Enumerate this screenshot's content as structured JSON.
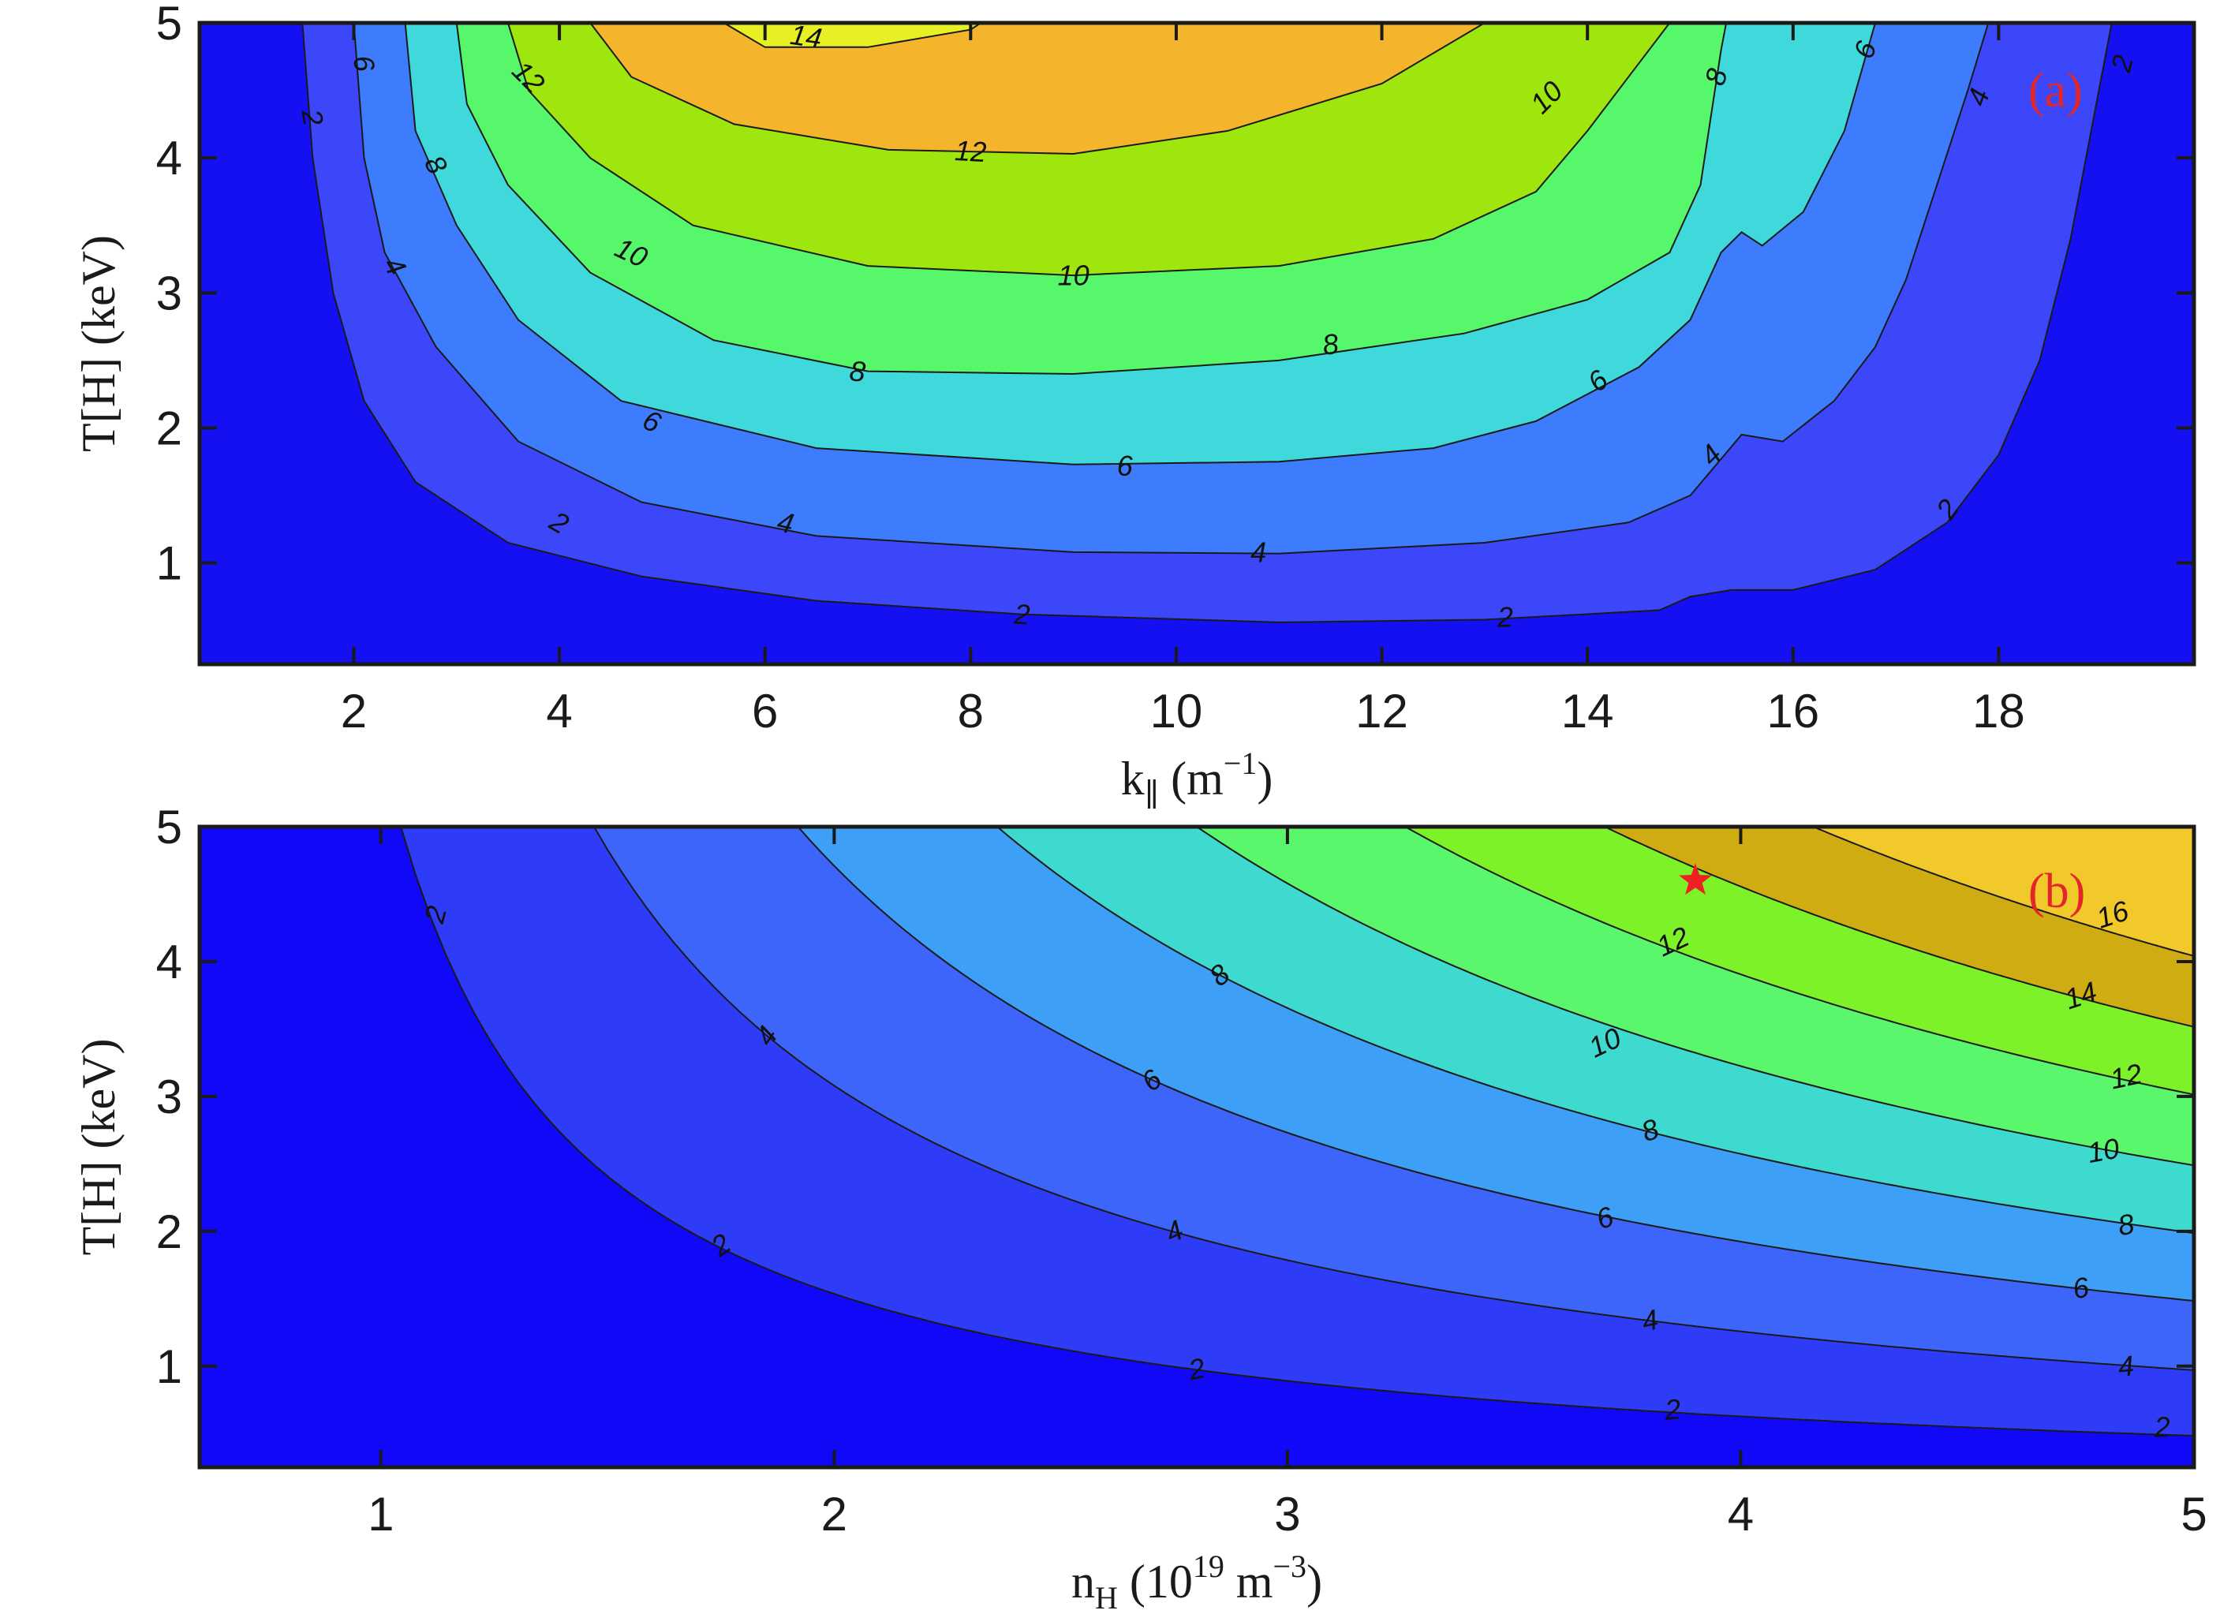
{
  "chart_data": [
    {
      "type": "contour",
      "panel_label": "(a)",
      "xlabel": {
        "main": "k",
        "sub": "∥",
        "open": " (m",
        "sup": "−1",
        "close": ")"
      },
      "ylabel": "T[H] (keV)",
      "xlim": [
        0.5,
        19.9
      ],
      "ylim": [
        0.25,
        5
      ],
      "xticks": [
        2,
        4,
        6,
        8,
        10,
        12,
        14,
        16,
        18
      ],
      "yticks": [
        1,
        2,
        3,
        4,
        5
      ],
      "levels": [
        2,
        4,
        6,
        8,
        10,
        12,
        14
      ],
      "fill_colors": [
        "#1410f2",
        "#3b47f8",
        "#3d7cfc",
        "#3fd9db",
        "#56f76a",
        "#9ee60d",
        "#f4b52c",
        "#e6f024"
      ],
      "contours": [
        {
          "level": 2,
          "points": [
            [
              1.5,
              5.0
            ],
            [
              1.6,
              4.0
            ],
            [
              1.8,
              3.0
            ],
            [
              2.1,
              2.2
            ],
            [
              2.6,
              1.6
            ],
            [
              3.5,
              1.15
            ],
            [
              4.8,
              0.9
            ],
            [
              6.5,
              0.72
            ],
            [
              8.5,
              0.62
            ],
            [
              11,
              0.56
            ],
            [
              13,
              0.58
            ],
            [
              14.7,
              0.65
            ],
            [
              15.0,
              0.75
            ],
            [
              15.4,
              0.8
            ],
            [
              16,
              0.8
            ],
            [
              16.8,
              0.95
            ],
            [
              17.5,
              1.3
            ],
            [
              18.0,
              1.8
            ],
            [
              18.4,
              2.5
            ],
            [
              18.7,
              3.4
            ],
            [
              18.9,
              4.2
            ],
            [
              19.1,
              5.0
            ]
          ]
        },
        {
          "level": 4,
          "points": [
            [
              2.0,
              5.0
            ],
            [
              2.1,
              4.0
            ],
            [
              2.3,
              3.3
            ],
            [
              2.8,
              2.6
            ],
            [
              3.6,
              1.9
            ],
            [
              4.8,
              1.45
            ],
            [
              6.5,
              1.2
            ],
            [
              9,
              1.08
            ],
            [
              11,
              1.07
            ],
            [
              13,
              1.15
            ],
            [
              14.4,
              1.3
            ],
            [
              15.0,
              1.5
            ],
            [
              15.5,
              1.95
            ],
            [
              15.9,
              1.9
            ],
            [
              16.4,
              2.2
            ],
            [
              16.8,
              2.6
            ],
            [
              17.1,
              3.1
            ],
            [
              17.4,
              3.8
            ],
            [
              17.7,
              4.5
            ],
            [
              17.9,
              5.0
            ]
          ]
        },
        {
          "level": 6,
          "points": [
            [
              2.5,
              5.0
            ],
            [
              2.6,
              4.2
            ],
            [
              3.0,
              3.5
            ],
            [
              3.6,
              2.8
            ],
            [
              4.6,
              2.2
            ],
            [
              6.5,
              1.85
            ],
            [
              9,
              1.73
            ],
            [
              11,
              1.75
            ],
            [
              12.5,
              1.85
            ],
            [
              13.5,
              2.05
            ],
            [
              14.5,
              2.45
            ],
            [
              15.0,
              2.8
            ],
            [
              15.3,
              3.3
            ],
            [
              15.5,
              3.45
            ],
            [
              15.7,
              3.35
            ],
            [
              16.1,
              3.6
            ],
            [
              16.5,
              4.2
            ],
            [
              16.8,
              5.0
            ]
          ]
        },
        {
          "level": 8,
          "points": [
            [
              3.0,
              5.0
            ],
            [
              3.1,
              4.4
            ],
            [
              3.5,
              3.8
            ],
            [
              4.3,
              3.15
            ],
            [
              5.5,
              2.65
            ],
            [
              7,
              2.42
            ],
            [
              9,
              2.4
            ],
            [
              11,
              2.5
            ],
            [
              12.8,
              2.7
            ],
            [
              14.0,
              2.95
            ],
            [
              14.8,
              3.3
            ],
            [
              15.1,
              3.8
            ],
            [
              15.2,
              4.3
            ],
            [
              15.3,
              4.8
            ],
            [
              15.35,
              5.0
            ]
          ]
        },
        {
          "level": 10,
          "points": [
            [
              3.5,
              5.0
            ],
            [
              3.7,
              4.5
            ],
            [
              4.3,
              4.0
            ],
            [
              5.3,
              3.5
            ],
            [
              7,
              3.2
            ],
            [
              9,
              3.13
            ],
            [
              11,
              3.2
            ],
            [
              12.5,
              3.4
            ],
            [
              13.5,
              3.75
            ],
            [
              14.0,
              4.2
            ],
            [
              14.5,
              4.7
            ],
            [
              14.8,
              5.0
            ]
          ]
        },
        {
          "level": 12,
          "points": [
            [
              4.3,
              5.0
            ],
            [
              4.7,
              4.6
            ],
            [
              5.7,
              4.25
            ],
            [
              7.2,
              4.06
            ],
            [
              9,
              4.03
            ],
            [
              10.5,
              4.2
            ],
            [
              12,
              4.55
            ],
            [
              13.0,
              5.0
            ]
          ]
        },
        {
          "level": 14,
          "points": [
            [
              5.6,
              5.0
            ],
            [
              6.0,
              4.82
            ],
            [
              7.0,
              4.82
            ],
            [
              8.0,
              4.95
            ],
            [
              8.1,
              5.0
            ]
          ]
        }
      ],
      "contour_labels": [
        {
          "text": "2",
          "x": 1.6,
          "y": 4.3,
          "angle": 80
        },
        {
          "text": "2",
          "x": 4.0,
          "y": 1.3,
          "angle": 30
        },
        {
          "text": "2",
          "x": 8.5,
          "y": 0.62,
          "angle": 3
        },
        {
          "text": "2",
          "x": 13.2,
          "y": 0.6,
          "angle": -2
        },
        {
          "text": "2",
          "x": 17.5,
          "y": 1.4,
          "angle": -55
        },
        {
          "text": "2",
          "x": 19.2,
          "y": 4.7,
          "angle": -75
        },
        {
          "text": "4",
          "x": 2.4,
          "y": 3.2,
          "angle": 60
        },
        {
          "text": "4",
          "x": 6.2,
          "y": 1.3,
          "angle": 12
        },
        {
          "text": "4",
          "x": 10.8,
          "y": 1.08,
          "angle": 0
        },
        {
          "text": "4",
          "x": 15.2,
          "y": 1.8,
          "angle": -45
        },
        {
          "text": "4",
          "x": 17.8,
          "y": 4.45,
          "angle": -70
        },
        {
          "text": "6",
          "x": 2.1,
          "y": 4.7,
          "angle": 80
        },
        {
          "text": "6",
          "x": 4.9,
          "y": 2.05,
          "angle": 25
        },
        {
          "text": "6",
          "x": 9.5,
          "y": 1.72,
          "angle": 0
        },
        {
          "text": "6",
          "x": 14.1,
          "y": 2.35,
          "angle": -40
        },
        {
          "text": "6",
          "x": 16.7,
          "y": 4.8,
          "angle": -70
        },
        {
          "text": "8",
          "x": 2.8,
          "y": 3.95,
          "angle": 60
        },
        {
          "text": "8",
          "x": 6.9,
          "y": 2.42,
          "angle": 5
        },
        {
          "text": "8",
          "x": 11.5,
          "y": 2.62,
          "angle": -8
        },
        {
          "text": "8",
          "x": 15.25,
          "y": 4.6,
          "angle": -75
        },
        {
          "text": "10",
          "x": 4.7,
          "y": 3.3,
          "angle": 25
        },
        {
          "text": "10",
          "x": 9.0,
          "y": 3.13,
          "angle": 0
        },
        {
          "text": "10",
          "x": 13.6,
          "y": 4.45,
          "angle": -45
        },
        {
          "text": "12",
          "x": 3.7,
          "y": 4.6,
          "angle": 45
        },
        {
          "text": "12",
          "x": 8.0,
          "y": 4.05,
          "angle": 3
        },
        {
          "text": "14",
          "x": 6.4,
          "y": 4.9,
          "angle": 8
        }
      ]
    },
    {
      "type": "contour",
      "panel_label": "(b)",
      "xlabel": {
        "main": "n",
        "sub": "H",
        "open": " (10",
        "sup": "19",
        "mid": " m",
        "sup2": "−3",
        "close": ")"
      },
      "ylabel": "T[H] (keV)",
      "xlim": [
        0.6,
        5.0
      ],
      "ylim": [
        0.25,
        5
      ],
      "xticks": [
        1,
        2,
        3,
        4,
        5
      ],
      "yticks": [
        1,
        2,
        3,
        4,
        5
      ],
      "levels": [
        2,
        4,
        6,
        8,
        10,
        12,
        14,
        16
      ],
      "fill_colors": [
        "#1008f6",
        "#2f3cf7",
        "#3e65fa",
        "#3d9ff5",
        "#3ed9cf",
        "#5af76c",
        "#7ef229",
        "#cfad12",
        "#f2c92a"
      ],
      "contours": [
        {
          "level": 2,
          "formula": "T = 2.12 / (n - 0.62)"
        },
        {
          "level": 4,
          "formula": "T = 4.25 / (n - 0.62)"
        },
        {
          "level": 6,
          "formula": "T = 6.5 / (n - 0.62)"
        },
        {
          "level": 8,
          "formula": "T = 8.7 / (n - 0.62)"
        },
        {
          "level": 10,
          "formula": "T = 10.9 / (n - 0.62)"
        },
        {
          "level": 12,
          "formula": "T = 13.2 / (n - 0.62)"
        },
        {
          "level": 14,
          "formula": "T = 15.4 / (n - 0.62)"
        },
        {
          "level": 16,
          "formula": "T = 17.7 / (n - 0.62)"
        }
      ],
      "contour_labels": [
        {
          "text": "2",
          "x": 1.12,
          "y": 4.35,
          "angle": -75
        },
        {
          "text": "2",
          "x": 1.75,
          "y": 1.9,
          "angle": -35
        },
        {
          "text": "2",
          "x": 2.8,
          "y": 0.98,
          "angle": -12
        },
        {
          "text": "2",
          "x": 3.85,
          "y": 0.68,
          "angle": -5
        },
        {
          "text": "2",
          "x": 4.93,
          "y": 0.55,
          "angle": -3
        },
        {
          "text": "4",
          "x": 1.85,
          "y": 3.45,
          "angle": -55
        },
        {
          "text": "4",
          "x": 2.75,
          "y": 2.0,
          "angle": -25
        },
        {
          "text": "4",
          "x": 3.8,
          "y": 1.34,
          "angle": -12
        },
        {
          "text": "4",
          "x": 4.85,
          "y": 1.0,
          "angle": -6
        },
        {
          "text": "6",
          "x": 2.7,
          "y": 3.12,
          "angle": -40
        },
        {
          "text": "6",
          "x": 3.7,
          "y": 2.1,
          "angle": -20
        },
        {
          "text": "6",
          "x": 4.75,
          "y": 1.58,
          "angle": -10
        },
        {
          "text": "8",
          "x": 2.85,
          "y": 3.9,
          "angle": -40
        },
        {
          "text": "8",
          "x": 3.8,
          "y": 2.75,
          "angle": -20
        },
        {
          "text": "8",
          "x": 4.85,
          "y": 2.05,
          "angle": -10
        },
        {
          "text": "10",
          "x": 3.7,
          "y": 3.4,
          "angle": -25
        },
        {
          "text": "10",
          "x": 4.8,
          "y": 2.6,
          "angle": -10
        },
        {
          "text": "12",
          "x": 3.85,
          "y": 4.15,
          "angle": -25
        },
        {
          "text": "12",
          "x": 4.85,
          "y": 3.15,
          "angle": -12
        },
        {
          "text": "14",
          "x": 4.75,
          "y": 3.75,
          "angle": -18
        },
        {
          "text": "16",
          "x": 4.82,
          "y": 4.35,
          "angle": -18
        }
      ],
      "marker": {
        "symbol": "star",
        "x": 3.9,
        "y": 4.6,
        "color": "#f01f24"
      }
    }
  ]
}
